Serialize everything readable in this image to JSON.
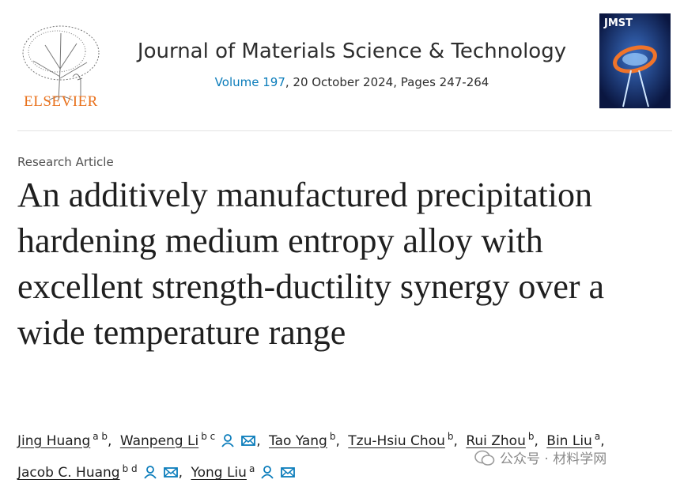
{
  "header": {
    "publisher": "ELSEVIER",
    "journal": "Journal of Materials Science & Technology",
    "volume": "Volume 197",
    "issue_details": ", 20 October 2024, Pages 247-264",
    "cover_label": "JMST"
  },
  "article": {
    "type": "Research Article",
    "title": "An additively manufactured precipitation hardening medium entropy alloy with excellent strength-ductility synergy over a wide temperature range",
    "author_separator": ",",
    "authors": [
      {
        "name": "Jing Huang",
        "affiliations": "a b",
        "contact": false
      },
      {
        "name": "Wanpeng Li",
        "affiliations": "b c",
        "contact": true
      },
      {
        "name": "Tao Yang",
        "affiliations": "b",
        "contact": false
      },
      {
        "name": "Tzu-Hsiu Chou",
        "affiliations": "b",
        "contact": false
      },
      {
        "name": "Rui Zhou",
        "affiliations": "b",
        "contact": false
      },
      {
        "name": "Bin Liu",
        "affiliations": "a",
        "contact": false
      },
      {
        "name": "Jacob C. Huang",
        "affiliations": "b d",
        "contact": true
      },
      {
        "name": "Yong Liu",
        "affiliations": "a",
        "contact": true
      }
    ]
  },
  "watermark": "公众号 · 材料学网"
}
